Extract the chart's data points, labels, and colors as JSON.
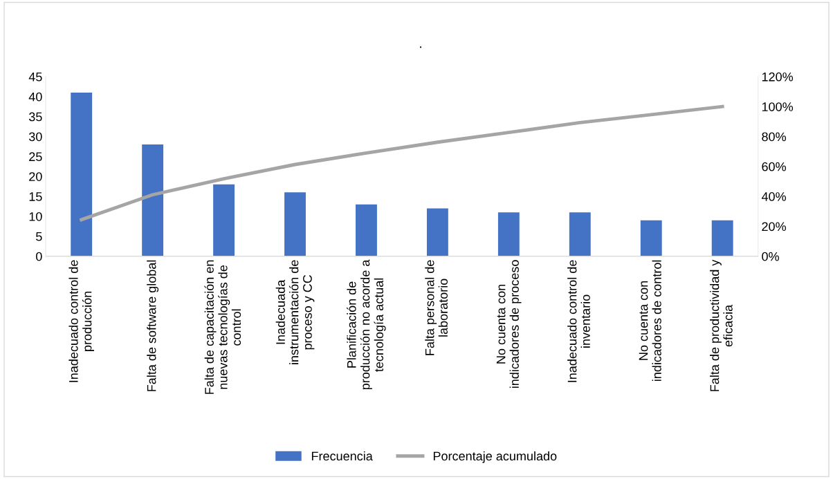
{
  "chart_data": {
    "type": "bar",
    "title": ".",
    "categories": [
      "Inadecuado control de\nproducción",
      "Falta de software global",
      "Falta de capacitación en\nnuevas tecnologías de\ncontrol",
      "Inadecuada\ninstrumentación de\nproceso y CC",
      "Planificación de\nproducción no acorde a\ntecnología actual",
      "Falta personal de\nlaboratorio",
      "No cuenta con\nindicadores de proceso",
      "Inadecuado control de\ninventario",
      "No cuenta con\nindicadores de control",
      "Falta de productividad y\neficacia"
    ],
    "series": [
      {
        "name": "Frecuencia",
        "color": "#4472c4",
        "values": [
          41,
          28,
          18,
          16,
          13,
          12,
          11,
          11,
          9,
          9
        ]
      },
      {
        "name": "Porcentaje acumulado",
        "type": "line",
        "axis": "y2",
        "color": "#a5a5a5",
        "values": [
          24.4,
          41.1,
          51.8,
          61.3,
          69.0,
          76.2,
          82.7,
          89.3,
          94.6,
          100
        ]
      }
    ],
    "ylim": [
      0,
      45
    ],
    "yticks": [
      0,
      5,
      10,
      15,
      20,
      25,
      30,
      35,
      40,
      45
    ],
    "y2lim": [
      0,
      120
    ],
    "y2ticks": [
      {
        "value": 0,
        "label": "0%"
      },
      {
        "value": 20,
        "label": "20%"
      },
      {
        "value": 40,
        "label": "40%"
      },
      {
        "value": 60,
        "label": "60%"
      },
      {
        "value": 80,
        "label": "80%"
      },
      {
        "value": 100,
        "label": "100%"
      },
      {
        "value": 120,
        "label": "120%"
      }
    ],
    "grid": false,
    "legend": "bottom",
    "marker": "none",
    "line_style": "solid"
  }
}
